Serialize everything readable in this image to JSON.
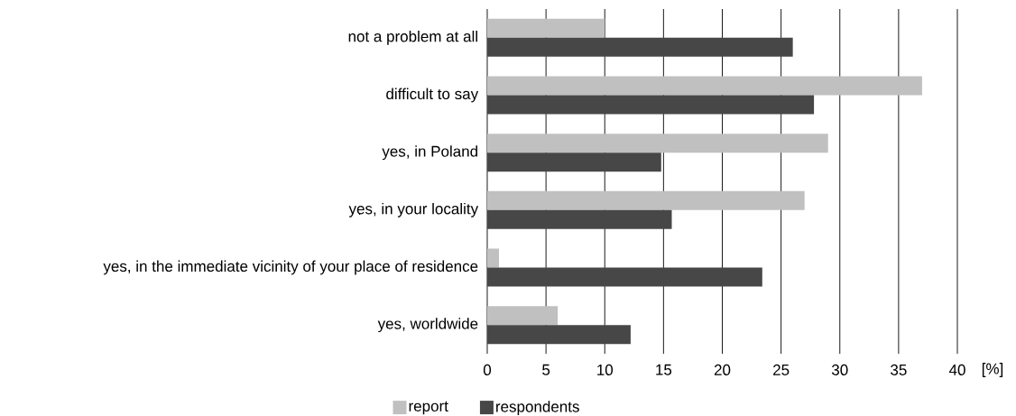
{
  "chart_data": {
    "type": "bar",
    "orientation": "horizontal",
    "categories": [
      "not a problem at all",
      "difficult to say",
      "yes, in Poland",
      "yes, in your locality",
      "yes, in the immediate vicinity of your place of residence",
      "yes, worldwide"
    ],
    "series": [
      {
        "name": "report",
        "color": "#c0c0c0",
        "values": [
          10,
          37,
          29,
          27,
          1,
          6
        ]
      },
      {
        "name": "respondents",
        "color": "#474747",
        "values": [
          26,
          27.8,
          14.8,
          15.7,
          23.4,
          12.2
        ]
      }
    ],
    "xlim": [
      0,
      40
    ],
    "xticks": [
      0,
      5,
      10,
      15,
      20,
      25,
      30,
      35,
      40
    ],
    "xlabel": "[%]",
    "grid": "x",
    "legend": "bottom"
  }
}
